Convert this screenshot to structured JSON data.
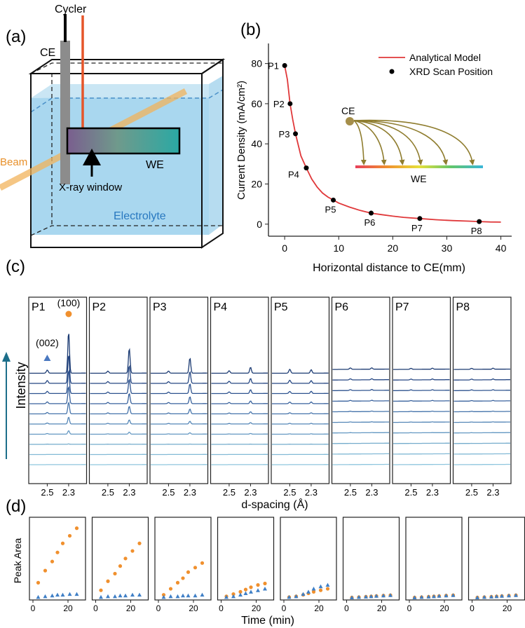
{
  "panel_a": {
    "label": "(a)",
    "cycler": "Cycler",
    "ce": "CE",
    "beam": "Beam",
    "we": "WE",
    "window": "X-ray window",
    "electrolyte": "Electrolyte"
  },
  "chart_data": [
    {
      "id": "b",
      "type": "line",
      "label": "(b)",
      "xlabel": "Horizontal distance to CE(mm)",
      "ylabel": "Current Density (mA/cm²)",
      "xlim": [
        -3,
        42
      ],
      "ylim": [
        -6,
        90
      ],
      "xticks": [
        0,
        10,
        20,
        30,
        40
      ],
      "yticks": [
        0,
        20,
        40,
        60,
        80
      ],
      "series": [
        {
          "name": "Analytical Model",
          "color": "#e0383a",
          "x": [
            0,
            0.5,
            1,
            1.5,
            2,
            3,
            4,
            5,
            6,
            7,
            8,
            9,
            10,
            12,
            14,
            16,
            18,
            20,
            22,
            25,
            28,
            31,
            34,
            36,
            38,
            40
          ],
          "y": [
            79,
            72,
            60,
            52,
            45,
            34,
            28,
            22.5,
            18.5,
            15.5,
            13.5,
            12,
            10.5,
            8.5,
            6.8,
            5.5,
            4.7,
            4,
            3.4,
            2.8,
            2.2,
            1.8,
            1.5,
            1.3,
            1.1,
            1
          ]
        },
        {
          "name": "XRD Scan Position",
          "color": "#000000",
          "points": [
            {
              "name": "P1",
              "x": 0,
              "y": 79
            },
            {
              "name": "P2",
              "x": 1,
              "y": 60
            },
            {
              "name": "P3",
              "x": 2,
              "y": 45
            },
            {
              "name": "P4",
              "x": 4,
              "y": 28
            },
            {
              "name": "P5",
              "x": 9,
              "y": 12
            },
            {
              "name": "P6",
              "x": 16,
              "y": 5.5
            },
            {
              "name": "P7",
              "x": 25,
              "y": 2.8
            },
            {
              "name": "P8",
              "x": 36,
              "y": 1.3
            }
          ]
        }
      ],
      "inset": {
        "ce": "CE",
        "we": "WE"
      }
    },
    {
      "id": "c",
      "type": "line",
      "label": "(c)",
      "ylabel": "Intensity",
      "xlabel": "d-spacing (Å)",
      "xtick_labels": [
        "2.5",
        "2.3"
      ],
      "peak_labels": {
        "p100": "(100)",
        "p002": "(002)"
      },
      "panels": [
        {
          "name": "P1",
          "h100": [
            0,
            0,
            0.5,
            5,
            10,
            17,
            25,
            34,
            42,
            60
          ],
          "h002": [
            0,
            0,
            0.3,
            1,
            1.5,
            2,
            2.6,
            3.2,
            4,
            4.5
          ]
        },
        {
          "name": "P2",
          "h100": [
            0,
            0,
            0.3,
            3,
            6,
            11,
            15,
            21,
            26,
            36
          ],
          "h002": [
            0,
            0,
            0.2,
            0.5,
            1,
            1.4,
            1.8,
            2.2,
            2.6,
            3
          ]
        },
        {
          "name": "P3",
          "h100": [
            0,
            0,
            0.3,
            2,
            4,
            7,
            10,
            14,
            17,
            22
          ],
          "h002": [
            0,
            0,
            0.2,
            0.5,
            0.9,
            1.3,
            1.7,
            2.1,
            2.5,
            3
          ]
        },
        {
          "name": "P4",
          "h100": [
            0,
            0,
            0.2,
            1,
            2,
            3,
            4,
            5.5,
            7,
            8.5
          ],
          "h002": [
            0,
            0,
            0.2,
            0.4,
            0.8,
            1.2,
            1.7,
            2.3,
            3,
            3.5
          ]
        },
        {
          "name": "P5",
          "h100": [
            0,
            0,
            0.2,
            0.5,
            0.9,
            1.5,
            2.5,
            3.2,
            4,
            5
          ],
          "h002": [
            0,
            0,
            0.2,
            0.5,
            1,
            1.6,
            2.3,
            3,
            4.5,
            5.5
          ]
        },
        {
          "name": "P6",
          "h100": [
            0,
            0,
            0.1,
            0.3,
            0.5,
            0.7,
            1,
            1.3,
            1.6,
            2
          ],
          "h002": [
            0,
            0,
            0.1,
            0.3,
            0.5,
            0.7,
            1,
            1.3,
            1.6,
            2
          ]
        },
        {
          "name": "P7",
          "h100": [
            0,
            0,
            0.1,
            0.2,
            0.4,
            0.6,
            0.8,
            1,
            1.2,
            1.5
          ],
          "h002": [
            0,
            0,
            0.1,
            0.2,
            0.4,
            0.6,
            0.8,
            1,
            1.2,
            1.5
          ]
        },
        {
          "name": "P8",
          "h100": [
            0,
            0,
            0.1,
            0.2,
            0.4,
            0.6,
            0.8,
            1,
            1.2,
            1.5
          ],
          "h002": [
            0,
            0,
            0.1,
            0.2,
            0.4,
            0.6,
            0.8,
            1,
            1.2,
            1.5
          ]
        }
      ]
    },
    {
      "id": "d",
      "type": "scatter",
      "label": "(d)",
      "ylabel": "Peak Area",
      "xlabel": "Time (min)",
      "xlim": [
        -2,
        30
      ],
      "ylim": [
        0,
        100
      ],
      "xtick_labels": [
        "0",
        "20"
      ],
      "times": [
        3,
        7,
        11,
        14,
        17,
        21,
        25
      ],
      "panels": [
        {
          "name": "P1",
          "s100": [
            20,
            36,
            48,
            60,
            72,
            82,
            92
          ],
          "s002": [
            1,
            2,
            3,
            4,
            4,
            5,
            5
          ]
        },
        {
          "name": "P2",
          "s100": [
            10,
            22,
            32,
            42,
            52,
            62,
            72
          ],
          "s002": [
            1,
            2,
            2,
            3,
            3,
            4,
            4
          ]
        },
        {
          "name": "P3",
          "s100": [
            4,
            12,
            20,
            26,
            34,
            40,
            46
          ],
          "s002": [
            1,
            2,
            2,
            3,
            3,
            3,
            4
          ]
        },
        {
          "name": "P4",
          "s100": [
            2,
            5,
            8,
            11,
            14,
            17,
            19
          ],
          "s002": [
            1,
            2,
            4,
            6,
            8,
            10,
            12
          ]
        },
        {
          "name": "P5",
          "s100": [
            1,
            2,
            4,
            6,
            8,
            10,
            12
          ],
          "s002": [
            1,
            2,
            5,
            8,
            12,
            15,
            17
          ]
        },
        {
          "name": "P6",
          "s100": [
            0.5,
            1,
            1.5,
            2,
            2.5,
            3,
            3.5
          ],
          "s002": [
            0.5,
            1,
            1.5,
            2,
            2.5,
            3,
            3.5
          ]
        },
        {
          "name": "P7",
          "s100": [
            0.5,
            1,
            1.5,
            2,
            2.5,
            3,
            3.5
          ],
          "s002": [
            0.5,
            1,
            1.5,
            2,
            2.5,
            3,
            3.5
          ]
        },
        {
          "name": "P8",
          "s100": [
            0.5,
            1,
            1.5,
            2,
            2.5,
            3,
            3.5
          ],
          "s002": [
            0.5,
            1,
            1.5,
            2,
            2.5,
            3,
            3.5
          ]
        }
      ]
    }
  ]
}
